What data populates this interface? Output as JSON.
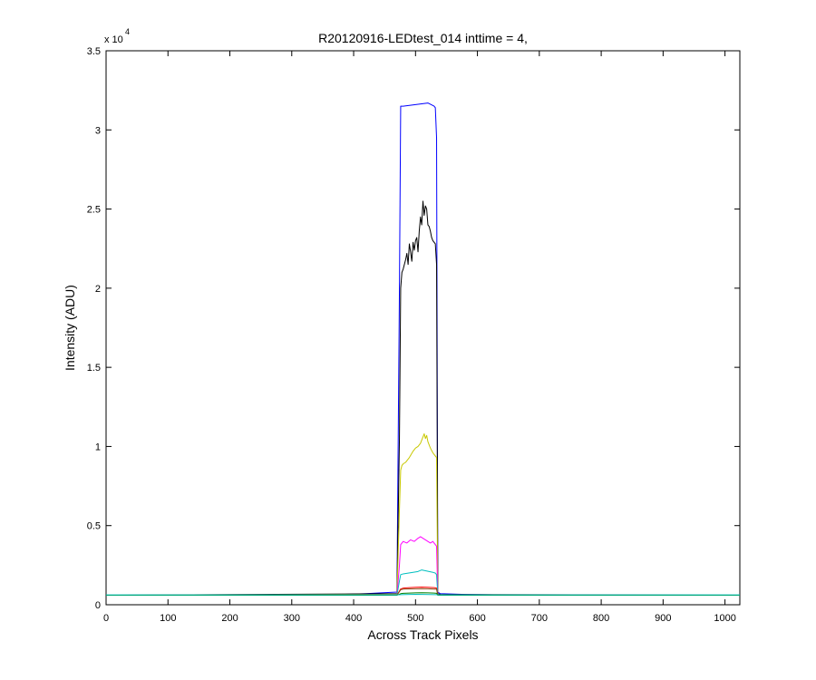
{
  "chart_data": {
    "type": "line",
    "title": "R20120916-LEDtest_014 inttime = 4,",
    "xlabel": "Across Track Pixels",
    "ylabel": "Intensity (ADU)",
    "y_exponent_base": "x 10",
    "y_exponent_power": "4",
    "xlim": [
      0,
      1024
    ],
    "ylim": [
      0,
      35000
    ],
    "grid": false,
    "legend": "none",
    "x_ticks": [
      0,
      100,
      200,
      300,
      400,
      500,
      600,
      700,
      800,
      900,
      1000
    ],
    "x_tick_labels": [
      "0",
      "100",
      "200",
      "300",
      "400",
      "500",
      "600",
      "700",
      "800",
      "900",
      "1000"
    ],
    "y_ticks": [
      0,
      5000,
      10000,
      15000,
      20000,
      25000,
      30000,
      35000
    ],
    "y_tick_labels": [
      "0",
      "0.5",
      "1",
      "1.5",
      "2",
      "2.5",
      "3",
      "3.5"
    ],
    "series": [
      {
        "color": "#0000ff",
        "x": [
          0,
          360,
          420,
          470,
          474,
          476,
          478,
          480,
          500,
          520,
          530,
          532,
          534,
          536,
          540,
          580,
          640,
          700,
          1024
        ],
        "y": [
          600,
          620,
          700,
          800,
          20000,
          31500,
          31500,
          31500,
          31600,
          31700,
          31500,
          31400,
          29500,
          800,
          700,
          650,
          620,
          600,
          600
        ]
      },
      {
        "color": "#000000",
        "x": [
          0,
          470,
          474,
          476,
          478,
          480,
          484,
          486,
          488,
          490,
          492,
          494,
          496,
          498,
          500,
          502,
          504,
          506,
          508,
          510,
          512,
          514,
          516,
          518,
          520,
          522,
          524,
          526,
          528,
          530,
          532,
          534,
          536,
          540,
          1024
        ],
        "y": [
          600,
          700,
          10500,
          20000,
          21000,
          21200,
          21800,
          22200,
          21500,
          22800,
          22300,
          21700,
          22900,
          22400,
          23000,
          23200,
          22300,
          23600,
          24500,
          24000,
          25500,
          24600,
          25200,
          25000,
          24000,
          23900,
          23600,
          23200,
          23000,
          22900,
          22800,
          21500,
          700,
          650,
          600
        ]
      },
      {
        "color": "#c8c800",
        "x": [
          0,
          470,
          474,
          476,
          478,
          480,
          484,
          490,
          496,
          500,
          504,
          508,
          512,
          514,
          516,
          518,
          520,
          524,
          528,
          532,
          534,
          536,
          540,
          1024
        ],
        "y": [
          600,
          650,
          6000,
          8500,
          8800,
          8900,
          9000,
          9300,
          9700,
          9900,
          10000,
          10200,
          10600,
          10800,
          10500,
          10700,
          10300,
          9900,
          9600,
          9400,
          9300,
          650,
          620,
          600
        ]
      },
      {
        "color": "#ff00ff",
        "x": [
          0,
          470,
          474,
          476,
          478,
          480,
          486,
          492,
          498,
          504,
          508,
          512,
          516,
          520,
          524,
          528,
          532,
          534,
          536,
          540,
          1024
        ],
        "y": [
          600,
          620,
          2500,
          3800,
          3900,
          4000,
          3900,
          4100,
          4000,
          4200,
          4300,
          4200,
          4100,
          4000,
          3900,
          4000,
          3800,
          3700,
          620,
          610,
          600
        ]
      },
      {
        "color": "#00bfbf",
        "x": [
          0,
          470,
          474,
          476,
          480,
          488,
          496,
          504,
          510,
          516,
          522,
          528,
          532,
          534,
          536,
          540,
          1024
        ],
        "y": [
          600,
          610,
          1500,
          1900,
          1950,
          2000,
          2050,
          2100,
          2200,
          2150,
          2100,
          2050,
          2000,
          1900,
          610,
          605,
          600
        ]
      },
      {
        "color": "#ff0000",
        "x": [
          0,
          470,
          476,
          480,
          490,
          500,
          510,
          520,
          530,
          534,
          536,
          540,
          1024
        ],
        "y": [
          600,
          605,
          1000,
          1050,
          1080,
          1100,
          1120,
          1100,
          1080,
          1050,
          605,
          602,
          600
        ]
      },
      {
        "color": "#8b4513",
        "x": [
          0,
          470,
          476,
          480,
          490,
          500,
          510,
          520,
          530,
          534,
          536,
          540,
          1024
        ],
        "y": [
          600,
          604,
          950,
          990,
          1000,
          1010,
          1020,
          1010,
          990,
          980,
          604,
          601,
          600
        ]
      },
      {
        "color": "#008000",
        "x": [
          0,
          470,
          476,
          480,
          490,
          500,
          510,
          520,
          530,
          534,
          536,
          540,
          1024
        ],
        "y": [
          600,
          603,
          700,
          720,
          740,
          750,
          760,
          750,
          740,
          720,
          603,
          601,
          600
        ]
      },
      {
        "color": "#00bfbf",
        "x": [
          0,
          400,
          470,
          476,
          500,
          534,
          536,
          600,
          1024
        ],
        "y": [
          620,
          620,
          620,
          640,
          660,
          640,
          620,
          620,
          620
        ]
      }
    ]
  }
}
